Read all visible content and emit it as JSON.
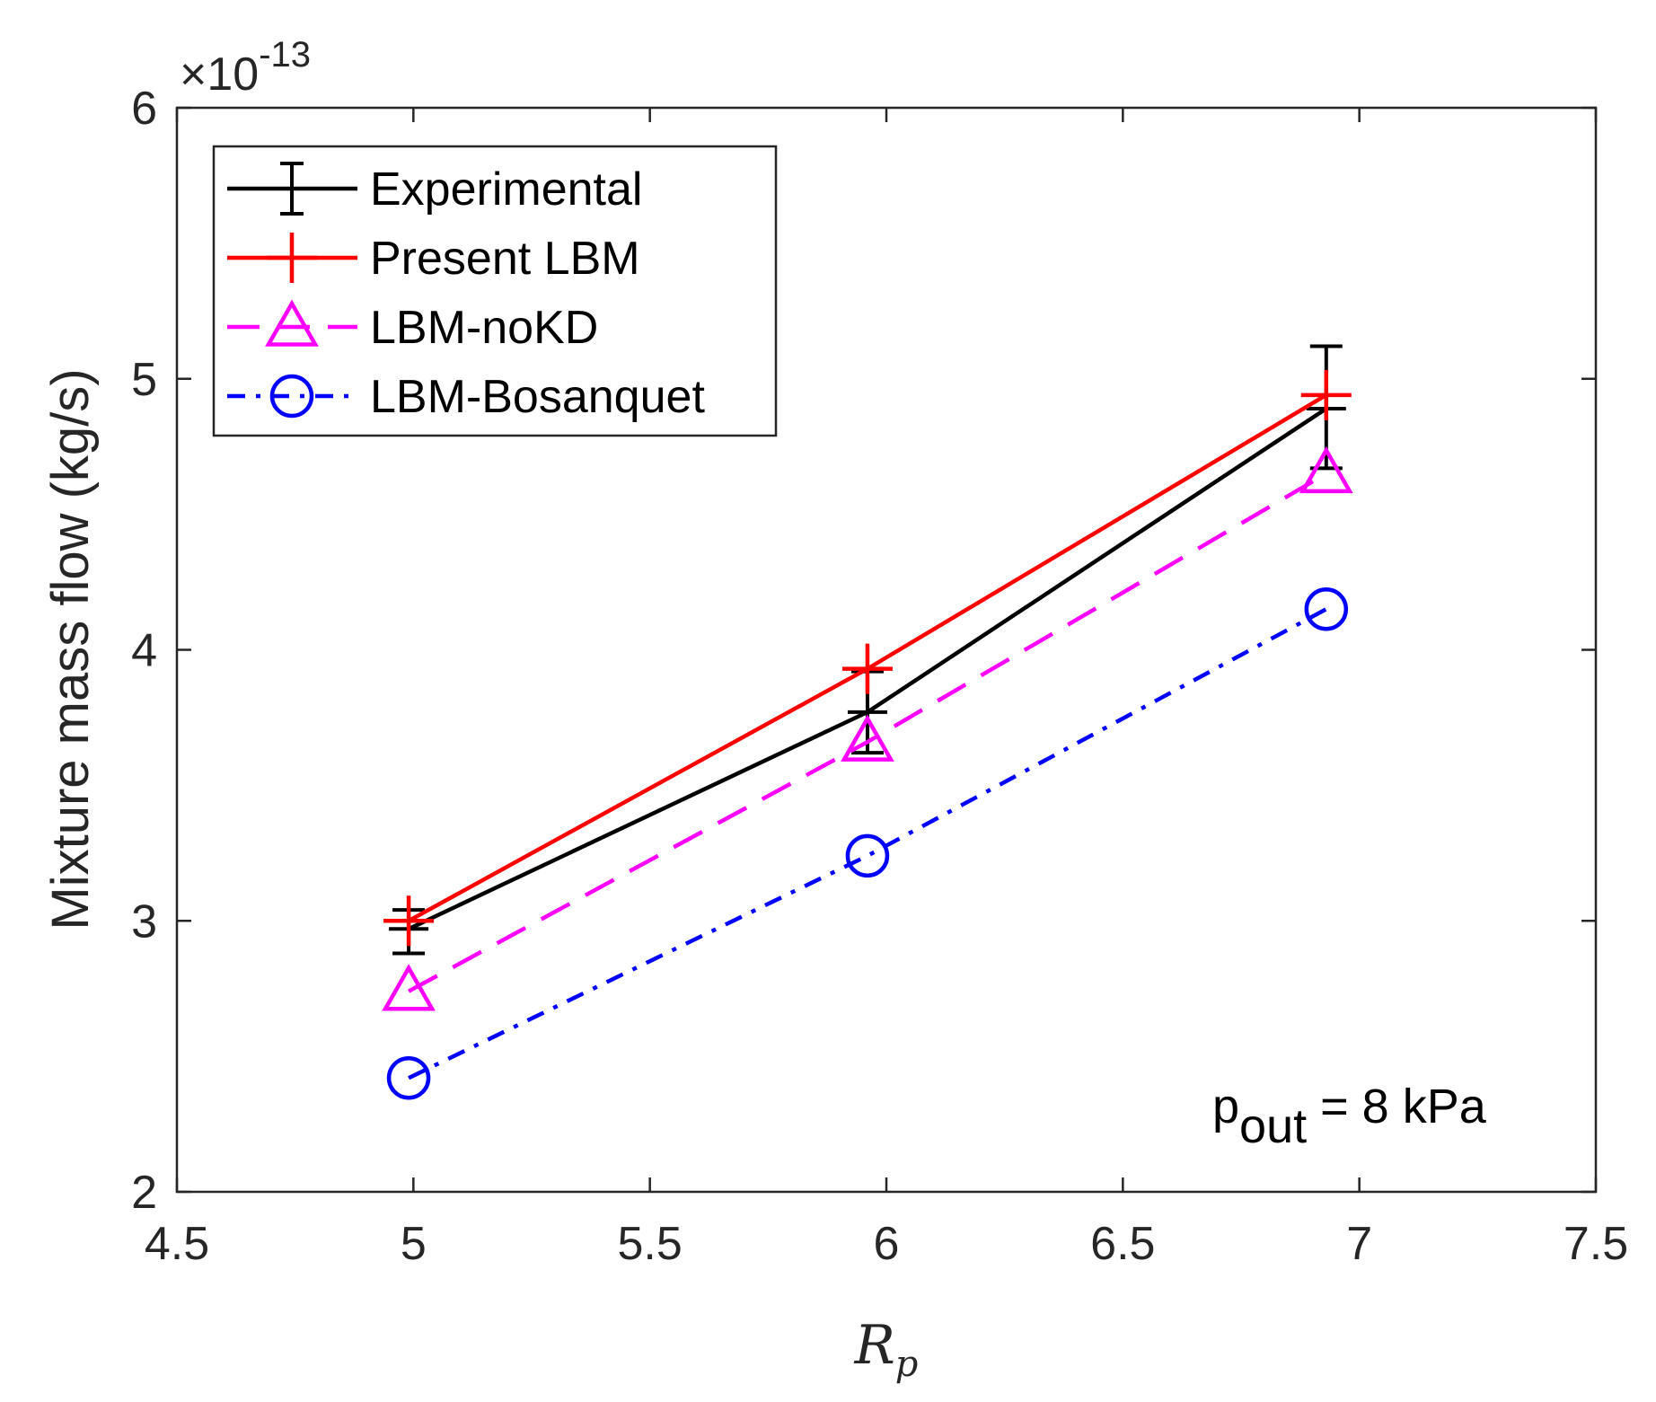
{
  "chart_data": {
    "type": "line",
    "title": "",
    "xlabel_base": "R",
    "xlabel_sub": "p",
    "ylabel": "Mixture mass flow (kg/s)",
    "y_exponent_prefix": "×10",
    "y_exponent": "-13",
    "xlim": [
      4.5,
      7.5
    ],
    "ylim": [
      2,
      6
    ],
    "x_ticks": [
      4.5,
      5,
      5.5,
      6,
      6.5,
      7,
      7.5
    ],
    "x_tick_labels": [
      "4.5",
      "5",
      "5.5",
      "6",
      "6.5",
      "7",
      "7.5"
    ],
    "y_ticks": [
      2,
      3,
      4,
      5,
      6
    ],
    "y_tick_labels": [
      "2",
      "3",
      "4",
      "5",
      "6"
    ],
    "grid": false,
    "legend_position": "top-left",
    "annotation": {
      "base": "p",
      "sub": "out",
      "rest": " = 8 kPa"
    },
    "series": [
      {
        "name": "Experimental",
        "color": "#000000",
        "dash": "solid",
        "marker": "errorbar",
        "x": [
          4.99,
          5.96,
          6.93
        ],
        "y": [
          2.97,
          3.77,
          4.89
        ],
        "err_low": [
          0.09,
          0.15,
          0.22
        ],
        "err_high": [
          0.07,
          0.15,
          0.23
        ]
      },
      {
        "name": "Present LBM",
        "color": "#ff0000",
        "dash": "solid",
        "marker": "plus",
        "x": [
          4.99,
          5.96,
          6.93
        ],
        "y": [
          3.0,
          3.93,
          4.94
        ]
      },
      {
        "name": "LBM-noKD",
        "color": "#ff00ff",
        "dash": "dashed",
        "marker": "triangle",
        "x": [
          4.99,
          5.96,
          6.93
        ],
        "y": [
          2.74,
          3.66,
          4.65
        ]
      },
      {
        "name": "LBM-Bosanquet",
        "color": "#0000ff",
        "dash": "dashdot",
        "marker": "circle",
        "x": [
          4.99,
          5.96,
          6.93
        ],
        "y": [
          2.42,
          3.24,
          4.15
        ]
      }
    ]
  }
}
